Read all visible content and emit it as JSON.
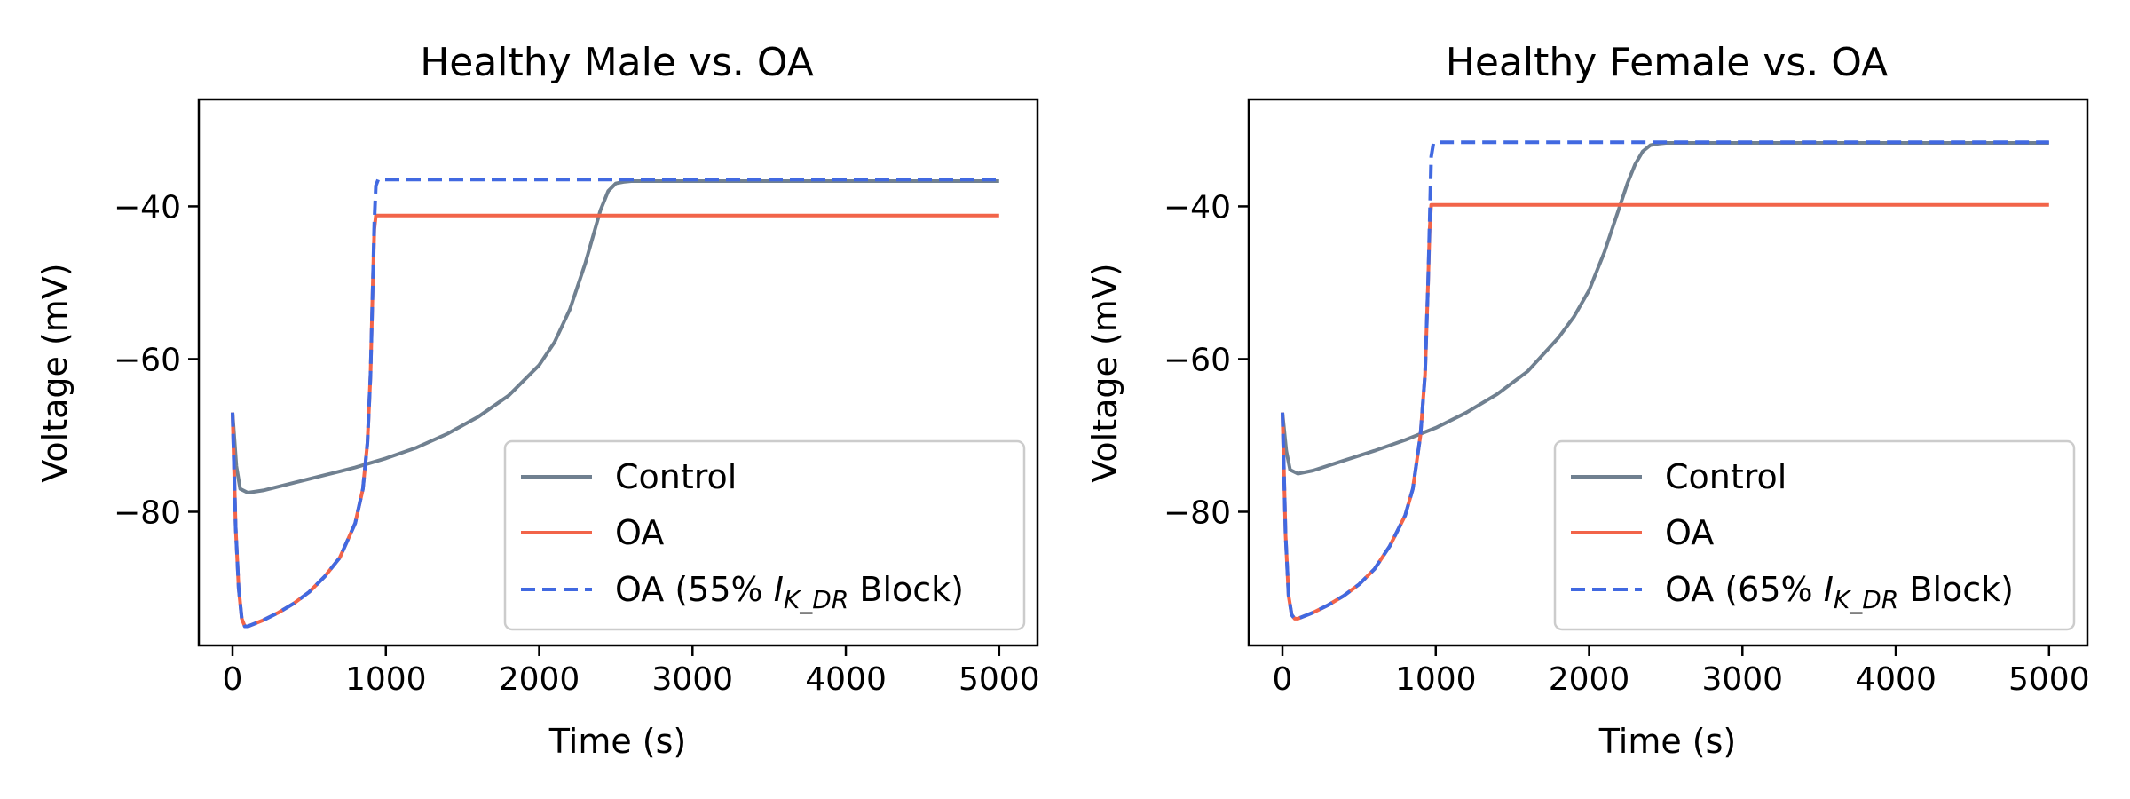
{
  "chart_data": [
    {
      "type": "line",
      "title": "Healthy Male vs. OA",
      "xlabel": "Time (s)",
      "ylabel": "Voltage (mV)",
      "xlim": [
        -220,
        5250
      ],
      "ylim": [
        -97.5,
        -26
      ],
      "xticks": [
        0,
        1000,
        2000,
        3000,
        4000,
        5000
      ],
      "yticks": [
        -80,
        -60,
        -40
      ],
      "xtick_labels": [
        "0",
        "1000",
        "2000",
        "3000",
        "4000",
        "5000"
      ],
      "ytick_labels": [
        "−80",
        "−60",
        "−40"
      ],
      "legend_position": "lower-right",
      "series": [
        {
          "name": "Control",
          "color": "#708090",
          "style": "solid",
          "x": [
            0,
            25,
            50,
            100,
            200,
            400,
            600,
            800,
            1000,
            1200,
            1400,
            1600,
            1800,
            2000,
            2100,
            2200,
            2300,
            2350,
            2400,
            2450,
            2500,
            2550,
            2600,
            3000,
            4000,
            5000
          ],
          "y": [
            -67,
            -74,
            -77,
            -77.5,
            -77.2,
            -76.2,
            -75.2,
            -74.2,
            -73,
            -71.6,
            -69.8,
            -67.6,
            -64.8,
            -60.8,
            -57.8,
            -53.5,
            -47.5,
            -44,
            -40.5,
            -38,
            -37,
            -36.8,
            -36.7,
            -36.7,
            -36.7,
            -36.7
          ]
        },
        {
          "name": "OA",
          "color": "#f26449",
          "style": "solid",
          "x": [
            0,
            20,
            40,
            60,
            80,
            100,
            200,
            300,
            400,
            500,
            600,
            700,
            800,
            850,
            880,
            900,
            915,
            925,
            935,
            1000,
            2000,
            3000,
            4000,
            5000
          ],
          "y": [
            -67,
            -82,
            -90,
            -94,
            -95,
            -95,
            -94.2,
            -93.2,
            -92,
            -90.5,
            -88.5,
            -86,
            -81.5,
            -77,
            -71,
            -62,
            -50,
            -43,
            -41.2,
            -41.2,
            -41.2,
            -41.2,
            -41.2,
            -41.2
          ]
        },
        {
          "name": "OA (55% IK_DR Block)",
          "color": "#4169e1",
          "style": "dashed",
          "x": [
            0,
            20,
            40,
            60,
            80,
            100,
            200,
            300,
            400,
            500,
            600,
            700,
            800,
            850,
            880,
            900,
            915,
            925,
            935,
            950,
            1000,
            2000,
            3000,
            4000,
            5000
          ],
          "y": [
            -67,
            -82,
            -90,
            -94,
            -95,
            -95,
            -94.2,
            -93.2,
            -92,
            -90.5,
            -88.5,
            -86,
            -81.5,
            -77,
            -71,
            -62,
            -50,
            -42,
            -37.3,
            -36.5,
            -36.5,
            -36.5,
            -36.5,
            -36.5,
            -36.5
          ]
        }
      ],
      "legend": {
        "labels": [
          "Control",
          "OA",
          "OA (55% "
        ],
        "block_symbol": "I",
        "block_sub": "K_DR",
        "block_suffix": " Block)"
      }
    },
    {
      "type": "line",
      "title": "Healthy Female vs. OA",
      "xlabel": "Time (s)",
      "ylabel": "Voltage (mV)",
      "xlim": [
        -220,
        5250
      ],
      "ylim": [
        -97.5,
        -26
      ],
      "xticks": [
        0,
        1000,
        2000,
        3000,
        4000,
        5000
      ],
      "yticks": [
        -80,
        -60,
        -40
      ],
      "xtick_labels": [
        "0",
        "1000",
        "2000",
        "3000",
        "4000",
        "5000"
      ],
      "ytick_labels": [
        "−80",
        "−60",
        "−40"
      ],
      "legend_position": "lower-right",
      "series": [
        {
          "name": "Control",
          "color": "#708090",
          "style": "solid",
          "x": [
            0,
            25,
            50,
            100,
            200,
            400,
            600,
            800,
            1000,
            1200,
            1400,
            1600,
            1800,
            1900,
            2000,
            2100,
            2150,
            2200,
            2250,
            2300,
            2350,
            2400,
            2450,
            2500,
            3000,
            4000,
            5000
          ],
          "y": [
            -67,
            -72,
            -74.5,
            -75,
            -74.6,
            -73.3,
            -72,
            -70.6,
            -69,
            -67,
            -64.6,
            -61.6,
            -57.2,
            -54.5,
            -51,
            -46,
            -43,
            -40,
            -37,
            -34.5,
            -32.8,
            -32,
            -31.8,
            -31.7,
            -31.7,
            -31.7,
            -31.7
          ]
        },
        {
          "name": "OA",
          "color": "#f26449",
          "style": "solid",
          "x": [
            0,
            20,
            40,
            60,
            80,
            100,
            200,
            300,
            400,
            500,
            600,
            700,
            800,
            850,
            900,
            930,
            950,
            960,
            970,
            1000,
            2000,
            3000,
            4000,
            5000
          ],
          "y": [
            -67,
            -83,
            -91,
            -93.5,
            -94,
            -94,
            -93.2,
            -92.2,
            -91,
            -89.5,
            -87.5,
            -84.5,
            -80.5,
            -77,
            -70,
            -62,
            -50,
            -43,
            -39.8,
            -39.8,
            -39.8,
            -39.8,
            -39.8,
            -39.8
          ]
        },
        {
          "name": "OA (65% IK_DR Block)",
          "color": "#4169e1",
          "style": "dashed",
          "x": [
            0,
            20,
            40,
            60,
            80,
            100,
            200,
            300,
            400,
            500,
            600,
            700,
            800,
            850,
            900,
            930,
            950,
            960,
            970,
            985,
            1000,
            2000,
            3000,
            4000,
            5000
          ],
          "y": [
            -67,
            -83,
            -91,
            -93.5,
            -94,
            -94,
            -93.2,
            -92.2,
            -91,
            -89.5,
            -87.5,
            -84.5,
            -80.5,
            -77,
            -70,
            -62,
            -50,
            -42,
            -33.5,
            -31.7,
            -31.6,
            -31.6,
            -31.6,
            -31.6,
            -31.6
          ]
        }
      ],
      "legend": {
        "labels": [
          "Control",
          "OA",
          "OA (65% "
        ],
        "block_symbol": "I",
        "block_sub": "K_DR",
        "block_suffix": " Block)"
      }
    }
  ]
}
